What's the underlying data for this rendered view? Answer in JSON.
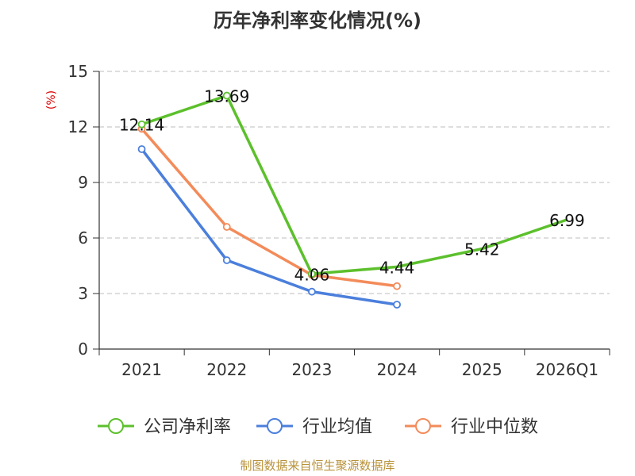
{
  "chart_data": {
    "type": "line",
    "title": "历年净利率变化情况(%)",
    "ylabel": "(%)",
    "xlabel": "",
    "categories": [
      "2021",
      "2022",
      "2023",
      "2024",
      "2025",
      "2026Q1"
    ],
    "ylim": [
      0,
      15
    ],
    "yticks": [
      0,
      3,
      6,
      9,
      12,
      15
    ],
    "grid": true,
    "legend_position": "bottom",
    "series": [
      {
        "name": "公司净利率",
        "color": "#5cc02c",
        "values": [
          12.14,
          13.69,
          4.06,
          4.44,
          5.42,
          6.99
        ],
        "labels": [
          "12.14",
          "13.69",
          "4.06",
          "4.44",
          "5.42",
          "6.99"
        ],
        "markers": [
          true,
          true,
          true,
          false,
          false,
          false
        ]
      },
      {
        "name": "行业均值",
        "color": "#4b7fdc",
        "values": [
          10.8,
          4.8,
          3.1,
          2.4,
          null,
          null
        ],
        "markers": [
          true,
          true,
          true,
          true,
          false,
          false
        ]
      },
      {
        "name": "行业中位数",
        "color": "#f38b5a",
        "values": [
          11.9,
          6.6,
          4.0,
          3.4,
          null,
          null
        ],
        "markers": [
          true,
          true,
          true,
          true,
          false,
          false
        ]
      }
    ],
    "source": "制图数据来自恒生聚源数据库"
  }
}
